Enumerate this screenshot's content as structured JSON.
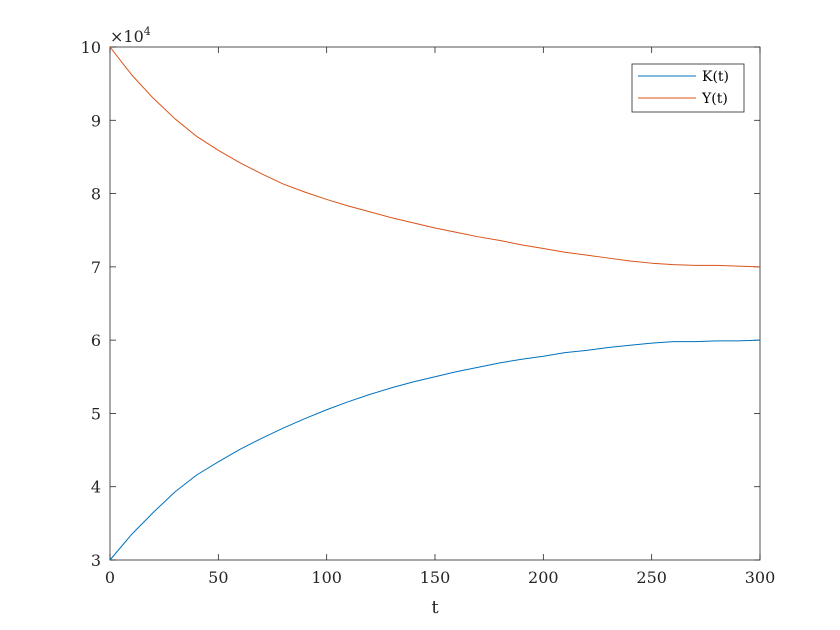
{
  "chart_data": {
    "type": "line",
    "title": "",
    "xlabel": "t",
    "ylabel": "",
    "xlim": [
      0,
      300
    ],
    "ylim": [
      3,
      10
    ],
    "y_multiplier_base": "×10",
    "y_multiplier_exp": "4",
    "x_ticks": [
      0,
      50,
      100,
      150,
      200,
      250,
      300
    ],
    "y_ticks": [
      3,
      4,
      5,
      6,
      7,
      8,
      9,
      10
    ],
    "grid": false,
    "legend_position": "top-right",
    "series": [
      {
        "name": "K(t)",
        "color": "#0072BD",
        "x": [
          0,
          10,
          20,
          30,
          40,
          50,
          60,
          70,
          80,
          90,
          100,
          110,
          120,
          130,
          140,
          150,
          160,
          170,
          180,
          190,
          200,
          210,
          220,
          230,
          240,
          250,
          260,
          270,
          280,
          290,
          300
        ],
        "y": [
          3.0,
          3.35,
          3.65,
          3.93,
          4.16,
          4.34,
          4.51,
          4.66,
          4.8,
          4.93,
          5.05,
          5.16,
          5.26,
          5.35,
          5.43,
          5.5,
          5.57,
          5.63,
          5.69,
          5.74,
          5.78,
          5.83,
          5.86,
          5.9,
          5.93,
          5.96,
          5.98,
          5.98,
          5.99,
          5.99,
          6.0
        ]
      },
      {
        "name": "Y(t)",
        "color": "#D95319",
        "x": [
          0,
          10,
          20,
          30,
          40,
          50,
          60,
          70,
          80,
          90,
          100,
          110,
          120,
          130,
          140,
          150,
          160,
          170,
          180,
          190,
          200,
          210,
          220,
          230,
          240,
          250,
          260,
          270,
          280,
          290,
          300
        ],
        "y": [
          10.0,
          9.62,
          9.3,
          9.02,
          8.78,
          8.59,
          8.42,
          8.27,
          8.13,
          8.02,
          7.92,
          7.83,
          7.75,
          7.67,
          7.6,
          7.53,
          7.47,
          7.41,
          7.36,
          7.3,
          7.25,
          7.2,
          7.16,
          7.12,
          7.08,
          7.05,
          7.03,
          7.02,
          7.02,
          7.01,
          7.0
        ]
      }
    ]
  }
}
